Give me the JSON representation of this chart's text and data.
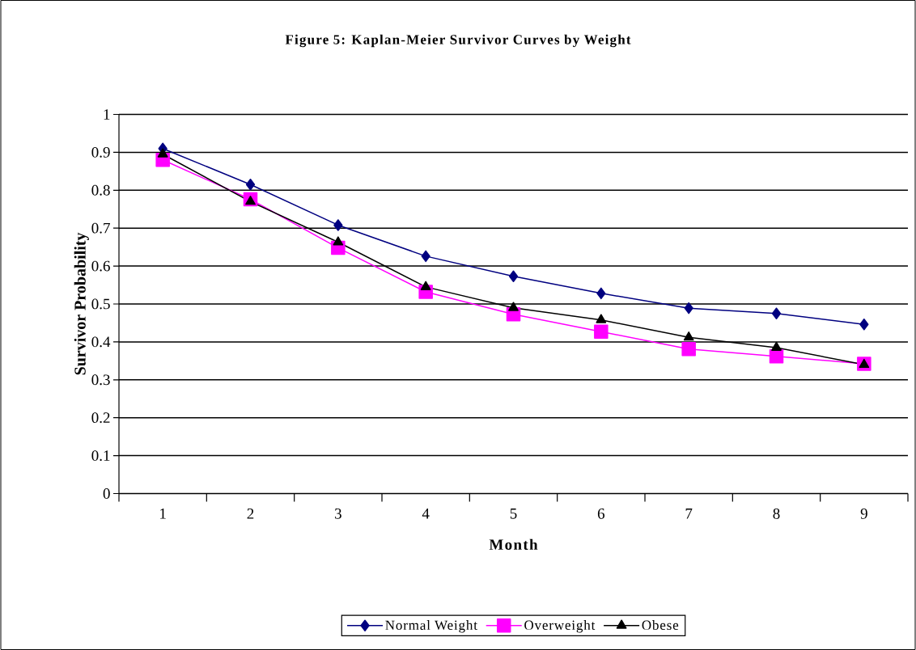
{
  "chart_data": {
    "type": "line",
    "title": "Figure 5: Kaplan-Meier Survivor Curves by Weight",
    "xlabel": "Month",
    "ylabel": "Survivor Probability",
    "categories": [
      "1",
      "2",
      "3",
      "4",
      "5",
      "6",
      "7",
      "8",
      "9"
    ],
    "series": [
      {
        "name": "Normal Weight",
        "color": "#000080",
        "marker": "diamond",
        "values": [
          0.91,
          0.815,
          0.708,
          0.626,
          0.573,
          0.528,
          0.489,
          0.475,
          0.446
        ]
      },
      {
        "name": "Overweight",
        "color": "#ff00ff",
        "marker": "square",
        "values": [
          0.88,
          0.776,
          0.648,
          0.532,
          0.473,
          0.427,
          0.381,
          0.362,
          0.342
        ]
      },
      {
        "name": "Obese",
        "color": "#000000",
        "marker": "triangle",
        "values": [
          0.895,
          0.77,
          0.663,
          0.545,
          0.49,
          0.458,
          0.412,
          0.385,
          0.34
        ]
      }
    ],
    "ylim": [
      0,
      1
    ],
    "yticks": [
      0,
      0.1,
      0.2,
      0.3,
      0.4,
      0.5,
      0.6,
      0.7,
      0.8,
      0.9,
      1
    ],
    "grid": "y",
    "legend": "bottom",
    "line_style": "solid"
  }
}
